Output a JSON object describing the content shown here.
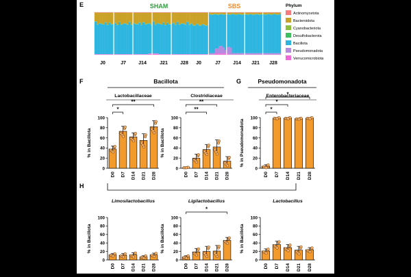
{
  "panels": {
    "E": "E",
    "F": "F",
    "G": "G",
    "H": "H"
  },
  "sham": {
    "title": "SHAM",
    "title_color": "#2e9e3a",
    "timepoints": [
      "J0",
      "J7",
      "J14",
      "J21",
      "J28"
    ]
  },
  "sbs": {
    "title": "SBS",
    "title_color": "#f28c28",
    "timepoints": [
      "J0",
      "J7",
      "J14",
      "J21",
      "J28"
    ]
  },
  "legend": {
    "title": "Phylum",
    "items": [
      {
        "label": "Actinomycetota",
        "color": "#f47c7c"
      },
      {
        "label": "Bacteroidota",
        "color": "#c9a227"
      },
      {
        "label": "Cyanobacteriota",
        "color": "#8fbf3f"
      },
      {
        "label": "Desulfobacterota",
        "color": "#3fbf5f"
      },
      {
        "label": "Bacillota",
        "color": "#2fb6e0"
      },
      {
        "label": "Pseudomonadota",
        "color": "#b58be0"
      },
      {
        "label": "Verrucomicrobiota",
        "color": "#f06bd8"
      }
    ]
  },
  "F": {
    "group_title": "Bacillota",
    "bar_color": "#f39a2c"
  },
  "G": {
    "group_title": "Pseudomonadota",
    "bar_color": "#f39a2c"
  },
  "chart_data": [
    {
      "type": "bar",
      "title": "Lactobacillaceae",
      "ylabel": "% in Bacillota",
      "ylim": [
        0,
        100
      ],
      "yticks": [
        0,
        20,
        40,
        60,
        80,
        100
      ],
      "categories": [
        "D0",
        "D7",
        "D14",
        "D21",
        "D28"
      ],
      "values": [
        38,
        73,
        62,
        55,
        82
      ],
      "errors": [
        6,
        10,
        8,
        13,
        12
      ],
      "significance": [
        {
          "from": "D0",
          "to": "D7",
          "label": "*"
        },
        {
          "from": "D0",
          "to": "D28",
          "label": "**"
        }
      ]
    },
    {
      "type": "bar",
      "title": "Clostridiaceae",
      "ylabel": "% in Bacillota",
      "ylim": [
        0,
        100
      ],
      "yticks": [
        0,
        20,
        40,
        60,
        80,
        100
      ],
      "categories": [
        "D0",
        "D7",
        "D14",
        "D21",
        "D28"
      ],
      "values": [
        1,
        20,
        37,
        42,
        14
      ],
      "errors": [
        1,
        8,
        10,
        14,
        9
      ],
      "significance": [
        {
          "from": "D0",
          "to": "D14",
          "label": "**"
        },
        {
          "from": "D0",
          "to": "D21",
          "label": "**"
        }
      ]
    },
    {
      "type": "bar",
      "title": "Enterobacteriaceae",
      "ylabel": "% in Pseudomonadota",
      "ylim": [
        0,
        100
      ],
      "yticks": [
        0,
        20,
        40,
        60,
        80,
        100
      ],
      "categories": [
        "D0",
        "D7",
        "D14",
        "D21",
        "D28"
      ],
      "values": [
        4,
        99,
        99,
        98,
        99
      ],
      "errors": [
        3,
        1,
        1,
        1,
        1
      ],
      "significance": [
        {
          "from": "D0",
          "to": "D7",
          "label": "*"
        },
        {
          "from": "D0",
          "to": "D14",
          "label": "*"
        },
        {
          "from": "D0",
          "to": "D28",
          "label": "*"
        }
      ]
    },
    {
      "type": "bar",
      "title": "Limosilactobacillus",
      "ylabel": "% in Bacillota",
      "ylim": [
        0,
        100
      ],
      "yticks": [
        0,
        20,
        40,
        60,
        80,
        100
      ],
      "categories": [
        "D0",
        "D7",
        "D14",
        "D21",
        "D28"
      ],
      "values": [
        12,
        11,
        12,
        7,
        12
      ],
      "errors": [
        3,
        4,
        5,
        3,
        4
      ],
      "significance": []
    },
    {
      "type": "bar",
      "title": "Ligilactobacillus",
      "ylabel": "% in Bacillota",
      "ylim": [
        0,
        100
      ],
      "yticks": [
        0,
        20,
        40,
        60,
        80,
        100
      ],
      "categories": [
        "D0",
        "D7",
        "D14",
        "D21",
        "D28"
      ],
      "values": [
        7,
        19,
        20,
        21,
        46
      ],
      "errors": [
        3,
        8,
        12,
        13,
        7
      ],
      "significance": [
        {
          "from": "D0",
          "to": "D28",
          "label": "*"
        }
      ]
    },
    {
      "type": "bar",
      "title": "Lactobacillus",
      "ylabel": "% in Bacillota",
      "ylim": [
        0,
        100
      ],
      "yticks": [
        0,
        20,
        40,
        60,
        80,
        100
      ],
      "categories": [
        "D0",
        "D7",
        "D14",
        "D21",
        "D28"
      ],
      "values": [
        21,
        36,
        29,
        23,
        24
      ],
      "errors": [
        5,
        8,
        7,
        9,
        5
      ],
      "significance": []
    }
  ]
}
